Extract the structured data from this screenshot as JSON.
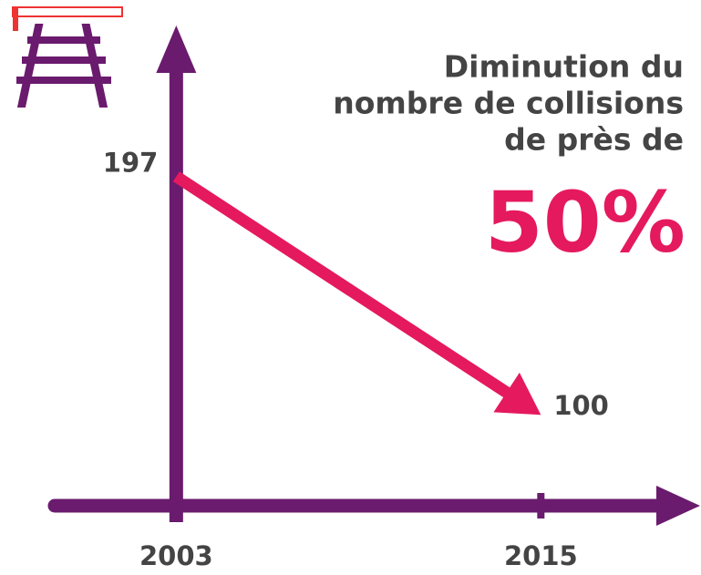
{
  "chart_data": {
    "type": "line",
    "title": [
      "Diminution du",
      "nombre de collisions",
      "de près de"
    ],
    "highlight": {
      "value": 50,
      "label": "50%"
    },
    "x": [
      2003,
      2015
    ],
    "values": [
      197,
      100
    ],
    "color": "#e5195e",
    "axis_color": "#6a1b6e",
    "xlim": [
      1999,
      2020
    ],
    "xticks": [
      2003,
      2015
    ],
    "ylim": [
      63,
      254
    ]
  }
}
